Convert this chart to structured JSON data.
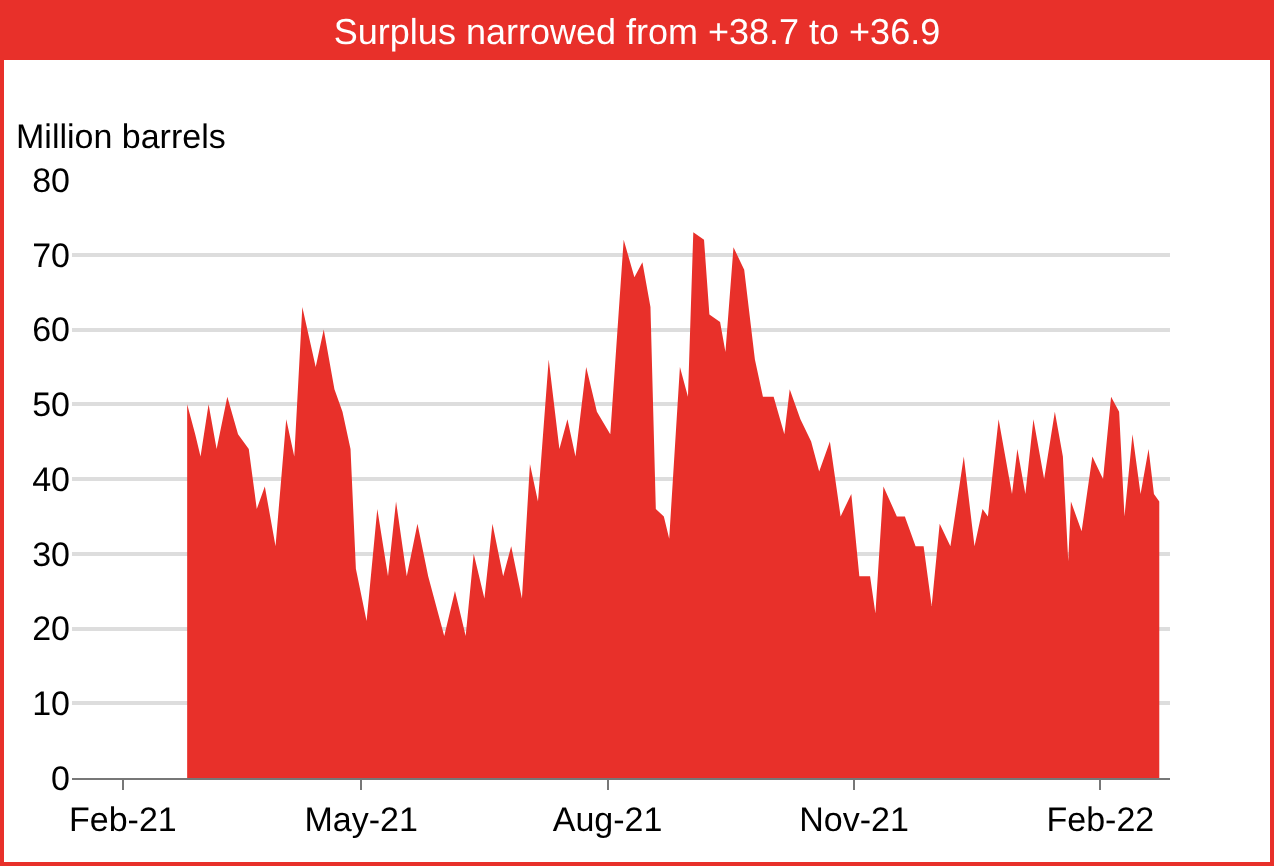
{
  "chart_data": {
    "type": "area",
    "title": "Surplus narrowed from +38.7 to +36.9",
    "ylabel": "Million barrels",
    "x": [
      "2021-02-25",
      "2021-02-28",
      "2021-03-02",
      "2021-03-05",
      "2021-03-08",
      "2021-03-12",
      "2021-03-16",
      "2021-03-20",
      "2021-03-23",
      "2021-03-26",
      "2021-03-30",
      "2021-04-03",
      "2021-04-06",
      "2021-04-09",
      "2021-04-14",
      "2021-04-17",
      "2021-04-21",
      "2021-04-24",
      "2021-04-27",
      "2021-04-29",
      "2021-05-03",
      "2021-05-07",
      "2021-05-11",
      "2021-05-14",
      "2021-05-18",
      "2021-05-22",
      "2021-05-26",
      "2021-06-01",
      "2021-06-05",
      "2021-06-09",
      "2021-06-12",
      "2021-06-16",
      "2021-06-19",
      "2021-06-23",
      "2021-06-26",
      "2021-06-30",
      "2021-07-03",
      "2021-07-06",
      "2021-07-10",
      "2021-07-14",
      "2021-07-17",
      "2021-07-20",
      "2021-07-24",
      "2021-07-28",
      "2021-08-02",
      "2021-08-07",
      "2021-08-11",
      "2021-08-14",
      "2021-08-17",
      "2021-08-19",
      "2021-08-22",
      "2021-08-24",
      "2021-08-28",
      "2021-08-31",
      "2021-09-02",
      "2021-09-06",
      "2021-09-08",
      "2021-09-12",
      "2021-09-14",
      "2021-09-17",
      "2021-09-21",
      "2021-09-25",
      "2021-09-28",
      "2021-10-02",
      "2021-10-06",
      "2021-10-08",
      "2021-10-12",
      "2021-10-16",
      "2021-10-19",
      "2021-10-23",
      "2021-10-27",
      "2021-10-31",
      "2021-11-03",
      "2021-11-07",
      "2021-11-09",
      "2021-11-12",
      "2021-11-17",
      "2021-11-20",
      "2021-11-24",
      "2021-11-27",
      "2021-11-30",
      "2021-12-03",
      "2021-12-07",
      "2021-12-12",
      "2021-12-16",
      "2021-12-19",
      "2021-12-21",
      "2021-12-25",
      "2021-12-30",
      "2022-01-01",
      "2022-01-04",
      "2022-01-07",
      "2022-01-11",
      "2022-01-15",
      "2022-01-18",
      "2022-01-20",
      "2022-01-21",
      "2022-01-25",
      "2022-01-29",
      "2022-02-02",
      "2022-02-05",
      "2022-02-08",
      "2022-02-10",
      "2022-02-13",
      "2022-02-16",
      "2022-02-19",
      "2022-02-21",
      "2022-02-23"
    ],
    "series": [
      {
        "color": "#e8302a",
        "values": [
          50,
          46,
          43,
          50,
          44,
          51,
          46,
          44,
          36,
          39,
          31,
          48,
          43,
          63,
          55,
          60,
          52,
          49,
          44,
          28,
          21,
          36,
          27,
          37,
          27,
          34,
          27,
          19,
          25,
          19,
          30,
          24,
          34,
          27,
          31,
          24,
          42,
          37,
          56,
          44,
          48,
          43,
          55,
          49,
          46,
          72,
          67,
          69,
          63,
          36,
          35,
          32,
          55,
          51,
          73,
          72,
          62,
          61,
          57,
          71,
          68,
          56,
          51,
          51,
          46,
          52,
          48,
          45,
          41,
          45,
          35,
          38,
          27,
          27,
          22,
          39,
          35,
          35,
          31,
          31,
          23,
          34,
          31,
          43,
          31,
          36,
          35,
          48,
          38,
          44,
          38,
          48,
          40,
          49,
          43,
          29,
          37,
          33,
          43,
          40,
          51,
          49,
          35,
          46,
          38,
          44,
          38,
          37
        ]
      }
    ],
    "xlim": [
      "2021-01-13",
      "2022-02-27"
    ],
    "xticks": [
      {
        "value": "2021-02-01",
        "label": "Feb-21"
      },
      {
        "value": "2021-05-01",
        "label": "May-21"
      },
      {
        "value": "2021-08-01",
        "label": "Aug-21"
      },
      {
        "value": "2021-11-01",
        "label": "Nov-21"
      },
      {
        "value": "2022-02-01",
        "label": "Feb-22"
      }
    ],
    "ylim": [
      0,
      80
    ],
    "yticks": [
      0,
      10,
      20,
      30,
      40,
      50,
      60,
      70,
      80
    ],
    "grid": "y"
  }
}
